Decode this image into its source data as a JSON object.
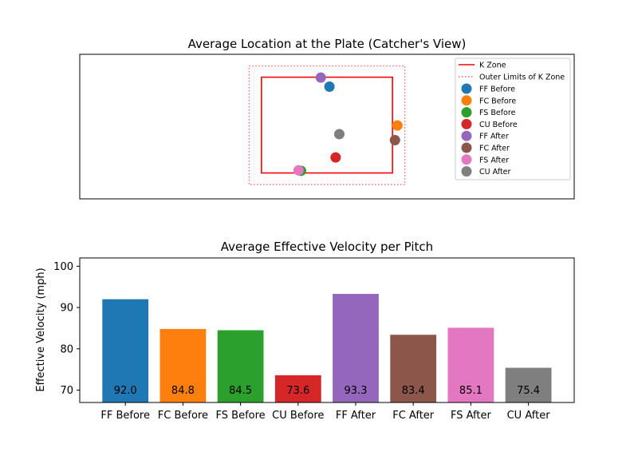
{
  "chart_data": [
    {
      "type": "scatter",
      "title": "Average Location at the Plate (Catcher's View)",
      "xlabel": "",
      "ylabel": "",
      "xlim": [
        -2.0,
        2.0
      ],
      "ylim": [
        0.9,
        4.25
      ],
      "axes_ticks": false,
      "legend_position": "top-right",
      "zones": [
        {
          "name": "K Zone",
          "style": "solid",
          "color": "#ff0000",
          "x": [
            -0.53,
            0.53
          ],
          "y": [
            1.5,
            3.72
          ]
        },
        {
          "name": "Outer Limits of K Zone",
          "style": "dotted",
          "color": "#ff6666",
          "x": [
            -0.63,
            0.63
          ],
          "y": [
            1.23,
            3.98
          ]
        }
      ],
      "series": [
        {
          "name": "FF Before",
          "color": "#1f77b4",
          "x": 0.02,
          "y": 3.5
        },
        {
          "name": "FC Before",
          "color": "#ff7f0e",
          "x": 0.57,
          "y": 2.6
        },
        {
          "name": "FS Before",
          "color": "#2ca02c",
          "x": -0.21,
          "y": 1.55
        },
        {
          "name": "CU Before",
          "color": "#d62728",
          "x": 0.07,
          "y": 1.86
        },
        {
          "name": "FF After",
          "color": "#9467bd",
          "x": -0.05,
          "y": 3.71
        },
        {
          "name": "FC After",
          "color": "#8c564b",
          "x": 0.55,
          "y": 2.26
        },
        {
          "name": "FS After",
          "color": "#e377c2",
          "x": -0.23,
          "y": 1.56
        },
        {
          "name": "CU After",
          "color": "#7f7f7f",
          "x": 0.1,
          "y": 2.4
        }
      ]
    },
    {
      "type": "bar",
      "title": "Average Effective Velocity per Pitch",
      "xlabel": "",
      "ylabel": "Effective Velocity (mph)",
      "ylim": [
        67,
        102
      ],
      "yticks": [
        70,
        80,
        90,
        100
      ],
      "categories": [
        "FF Before",
        "FC Before",
        "FS Before",
        "CU Before",
        "FF After",
        "FC After",
        "FS After",
        "CU After"
      ],
      "values": [
        92.0,
        84.8,
        84.5,
        73.6,
        93.3,
        83.4,
        85.1,
        75.4
      ],
      "labels": [
        "92.0",
        "84.8",
        "84.5",
        "73.6",
        "93.3",
        "83.4",
        "85.1",
        "75.4"
      ],
      "colors": [
        "#1f77b4",
        "#ff7f0e",
        "#2ca02c",
        "#d62728",
        "#9467bd",
        "#8c564b",
        "#e377c2",
        "#7f7f7f"
      ]
    }
  ]
}
